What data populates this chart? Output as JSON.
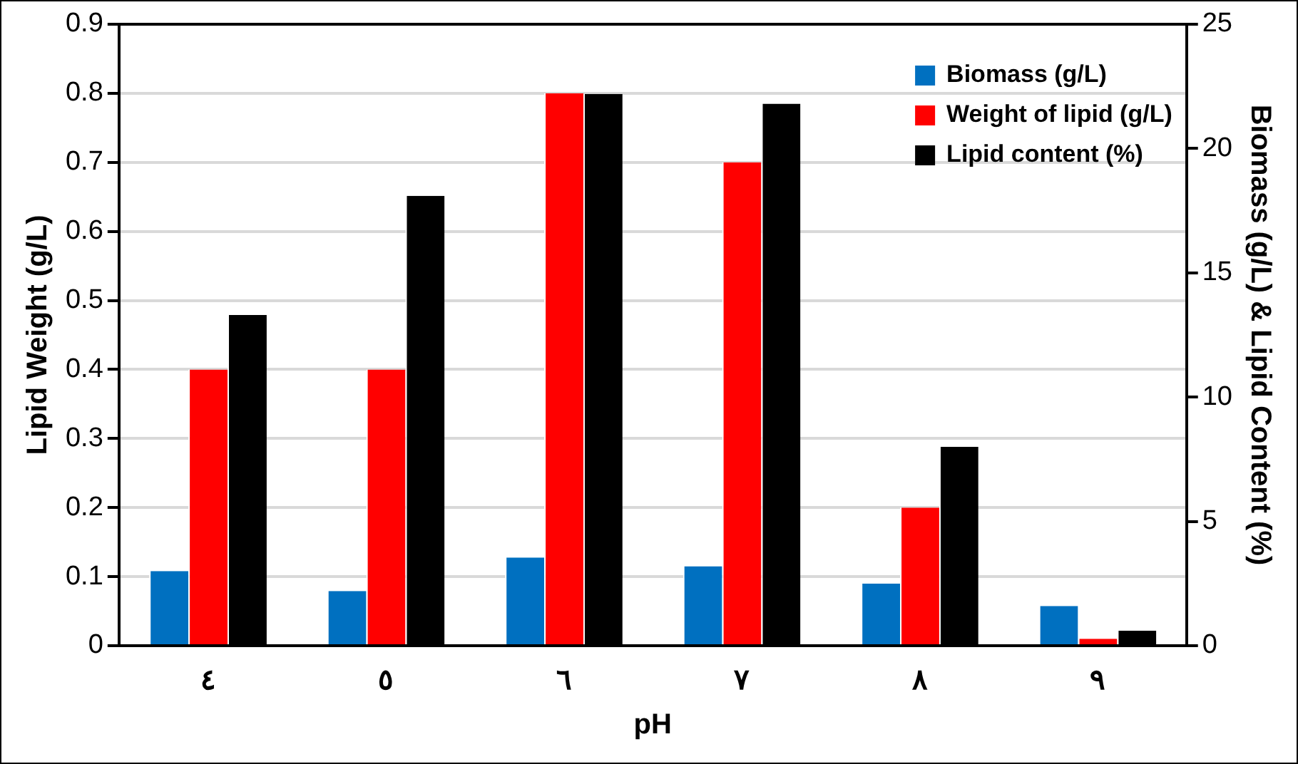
{
  "chart_data": {
    "type": "bar",
    "categories": [
      "٤",
      "٥",
      "٦",
      "٧",
      "٨",
      "٩"
    ],
    "xlabel": "pH",
    "ylabel": "Lipid Weight (g/L)",
    "y2label": "Biomass (g/L) & Lipid Content (%)",
    "series": [
      {
        "name": "Biomass (g/L)",
        "color": "#0070c0",
        "axis": "y2",
        "values": [
          3.0,
          2.2,
          3.55,
          3.2,
          2.5,
          1.6
        ]
      },
      {
        "name": "Weight of lipid (g/L)",
        "color": "#ff0000",
        "values": [
          0.4,
          0.4,
          0.8,
          0.7,
          0.2,
          0.01
        ]
      },
      {
        "name": "Lipid content (%)",
        "color": "#000000",
        "axis": "y2",
        "values": [
          13.3,
          18.1,
          22.2,
          21.8,
          8.0,
          0.6
        ]
      }
    ],
    "ylim": [
      0,
      0.9
    ],
    "yticks": [
      0,
      0.1,
      0.2,
      0.3,
      0.4,
      0.5,
      0.6,
      0.7,
      0.8,
      0.9
    ],
    "y2lim": [
      0,
      25
    ],
    "y2ticks": [
      0,
      5,
      10,
      15,
      20,
      25
    ],
    "grid": "y",
    "legend": "top right"
  }
}
